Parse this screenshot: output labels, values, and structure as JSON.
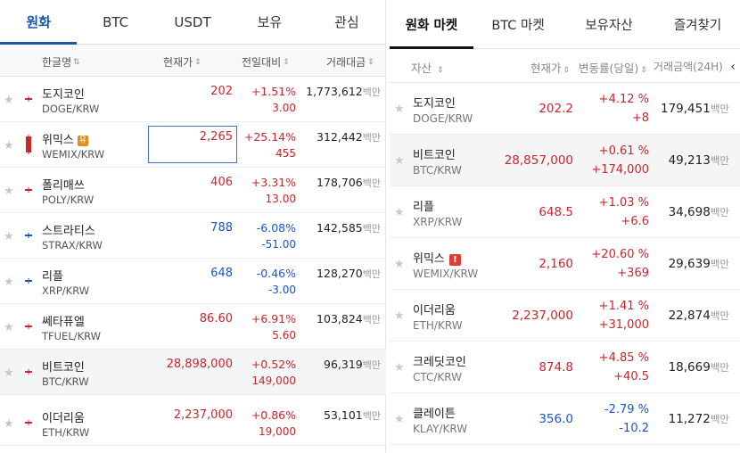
{
  "left": {
    "tabs": [
      {
        "label": "원화",
        "active": true
      },
      {
        "label": "BTC"
      },
      {
        "label": "USDT"
      },
      {
        "label": "보유"
      },
      {
        "label": "관심"
      }
    ],
    "headers": {
      "name": "한글명",
      "name_sort": "⇅",
      "price": "현재가",
      "price_sort": "⇕",
      "change": "전일대비",
      "change_sort": "⇕",
      "volume": "거래대금",
      "volume_sort": "⇕"
    },
    "volume_unit": "백만",
    "rows": [
      {
        "name": "도지코인",
        "symbol": "DOGE/KRW",
        "price": "202",
        "change_pct": "+1.51%",
        "change_amt": "3.00",
        "volume": "1,773,612",
        "dir": "up"
      },
      {
        "name": "위믹스",
        "badge": "유",
        "symbol": "WEMIX/KRW",
        "price": "2,265",
        "change_pct": "+25.14%",
        "change_amt": "455",
        "volume": "312,442",
        "dir": "up",
        "selected": true
      },
      {
        "name": "폴리매쓰",
        "symbol": "POLY/KRW",
        "price": "406",
        "change_pct": "+3.31%",
        "change_amt": "13.00",
        "volume": "178,706",
        "dir": "up"
      },
      {
        "name": "스트라티스",
        "symbol": "STRAX/KRW",
        "price": "788",
        "change_pct": "-6.08%",
        "change_amt": "-51.00",
        "volume": "142,585",
        "dir": "down"
      },
      {
        "name": "리플",
        "symbol": "XRP/KRW",
        "price": "648",
        "change_pct": "-0.46%",
        "change_amt": "-3.00",
        "volume": "128,270",
        "dir": "down"
      },
      {
        "name": "쎄타퓨엘",
        "symbol": "TFUEL/KRW",
        "price": "86.60",
        "change_pct": "+6.91%",
        "change_amt": "5.60",
        "volume": "103,824",
        "dir": "up"
      },
      {
        "name": "비트코인",
        "symbol": "BTC/KRW",
        "price": "28,898,000",
        "change_pct": "+0.52%",
        "change_amt": "149,000",
        "volume": "96,319",
        "dir": "up",
        "highlight": true
      },
      {
        "name": "이더리움",
        "symbol": "ETH/KRW",
        "price": "2,237,000",
        "change_pct": "+0.86%",
        "change_amt": "19,000",
        "volume": "53,101",
        "dir": "up"
      }
    ]
  },
  "right": {
    "tabs": [
      {
        "label": "원화 마켓",
        "active": true
      },
      {
        "label": "BTC 마켓"
      },
      {
        "label": "보유자산"
      },
      {
        "label": "즐겨찾기"
      }
    ],
    "headers": {
      "asset": "자산",
      "asset_sort": "⇕",
      "price": "현재가",
      "price_sort": "⇕",
      "change": "변동률(당일)",
      "change_sort": "⇕",
      "volume": "거래금액(24H)",
      "volume_sort": "⇕",
      "collapse": "‹"
    },
    "volume_unit": "백만",
    "rows": [
      {
        "name": "도지코인",
        "symbol": "DOGE/KRW",
        "price": "202.2",
        "change_pct": "+4.12 %",
        "change_amt": "+8",
        "volume": "179,451",
        "dir": "up"
      },
      {
        "name": "비트코인",
        "symbol": "BTC/KRW",
        "price": "28,857,000",
        "change_pct": "+0.61 %",
        "change_amt": "+174,000",
        "volume": "49,213",
        "dir": "up",
        "highlight": true
      },
      {
        "name": "리플",
        "symbol": "XRP/KRW",
        "price": "648.5",
        "change_pct": "+1.03 %",
        "change_amt": "+6.6",
        "volume": "34,698",
        "dir": "up"
      },
      {
        "name": "위믹스",
        "badge": "!",
        "symbol": "WEMIX/KRW",
        "price": "2,160",
        "change_pct": "+20.60 %",
        "change_amt": "+369",
        "volume": "29,639",
        "dir": "up"
      },
      {
        "name": "이더리움",
        "symbol": "ETH/KRW",
        "price": "2,237,000",
        "change_pct": "+1.41 %",
        "change_amt": "+31,000",
        "volume": "22,874",
        "dir": "up"
      },
      {
        "name": "크레딧코인",
        "symbol": "CTC/KRW",
        "price": "874.8",
        "change_pct": "+4.85 %",
        "change_amt": "+40.5",
        "volume": "18,669",
        "dir": "up"
      },
      {
        "name": "클레이튼",
        "symbol": "KLAY/KRW",
        "price": "356.0",
        "change_pct": "-2.79 %",
        "change_amt": "-10.2",
        "volume": "11,272",
        "dir": "down"
      }
    ]
  },
  "colors": {
    "up": "#c8272d",
    "down": "#1a56c8",
    "accent_left": "#1a56a8",
    "badge_warning": "#e38a1c",
    "badge_alert": "#e53935"
  },
  "icons": {
    "star": "★"
  }
}
